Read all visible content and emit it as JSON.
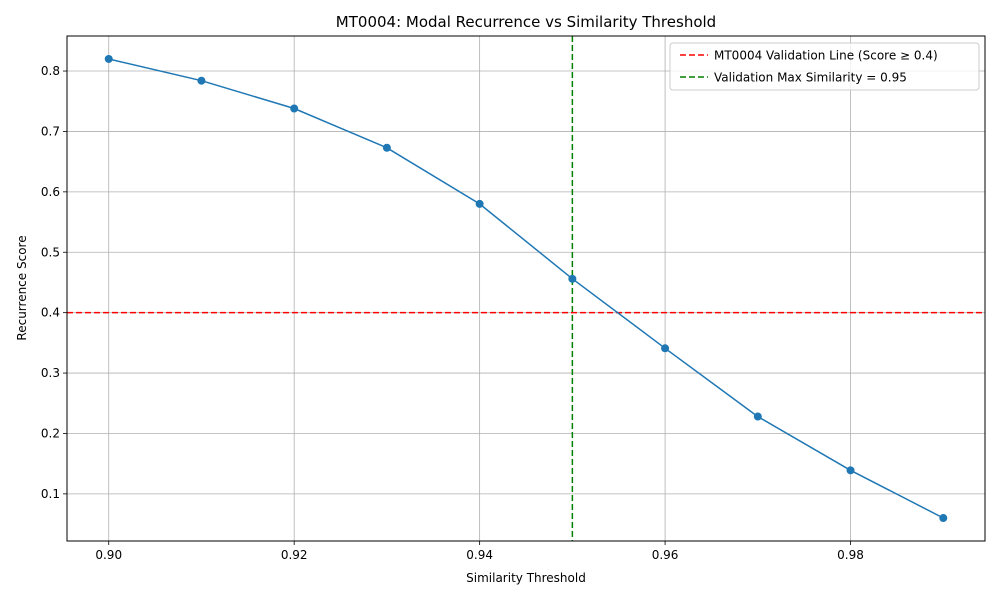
{
  "chart_data": {
    "type": "line",
    "title": "MT0004: Modal Recurrence vs Similarity Threshold",
    "xlabel": "Similarity Threshold",
    "ylabel": "Recurrence Score",
    "xlim": [
      0.8955,
      0.9945
    ],
    "ylim": [
      0.022,
      0.858
    ],
    "x_ticks": [
      "0.90",
      "0.92",
      "0.94",
      "0.96",
      "0.98"
    ],
    "y_ticks": [
      "0.1",
      "0.2",
      "0.3",
      "0.4",
      "0.5",
      "0.6",
      "0.7",
      "0.8"
    ],
    "grid": true,
    "legend_position": "top-right",
    "series": [
      {
        "x": [
          0.9,
          0.91,
          0.92,
          0.93,
          0.94,
          0.95,
          0.96,
          0.97,
          0.98,
          0.99
        ],
        "values": [
          0.82,
          0.784,
          0.738,
          0.673,
          0.58,
          0.456,
          0.341,
          0.228,
          0.139,
          0.06
        ],
        "color": "#1f77b4",
        "marker": "circle"
      }
    ],
    "reference_lines": [
      {
        "orientation": "horizontal",
        "value": 0.4,
        "color": "#ff0000",
        "style": "dashed",
        "label": "MT0004 Validation Line (Score ≥ 0.4)"
      },
      {
        "orientation": "vertical",
        "value": 0.95,
        "color": "#008000",
        "style": "dashed",
        "label": "Validation Max Similarity = 0.95"
      }
    ]
  }
}
